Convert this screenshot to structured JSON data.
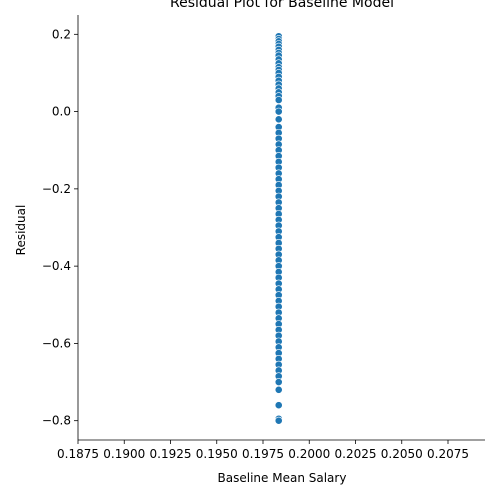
{
  "chart_data": {
    "type": "scatter",
    "title": "Residual Plot for Baseline Model",
    "xlabel": "Baseline Mean Salary",
    "ylabel": "Residual",
    "xlim": [
      0.1875,
      0.2095
    ],
    "ylim": [
      -0.85,
      0.25
    ],
    "xticks": [
      "0.1875",
      "0.1900",
      "0.1925",
      "0.1950",
      "0.1975",
      "0.2000",
      "0.2025",
      "0.2050",
      "0.2075"
    ],
    "yticks": [
      "0.2",
      "0.0",
      "−0.2",
      "−0.4",
      "−0.6",
      "−0.8"
    ],
    "grid": false,
    "marker_color": "#1f77b4",
    "marker_edge_color": "#ffffff",
    "series": [
      {
        "x": 0.19835,
        "y": [
          0.195,
          0.188,
          0.182,
          0.175,
          0.168,
          0.16,
          0.152,
          0.145,
          0.135,
          0.125,
          0.115,
          0.108,
          0.1,
          0.09,
          0.08,
          0.07,
          0.06,
          0.05,
          0.04,
          0.03,
          0.01,
          0.0,
          -0.02,
          -0.04,
          -0.055,
          -0.07,
          -0.085,
          -0.1,
          -0.115,
          -0.13,
          -0.145,
          -0.16,
          -0.175,
          -0.19,
          -0.205,
          -0.22,
          -0.235,
          -0.25,
          -0.265,
          -0.28,
          -0.295,
          -0.31,
          -0.325,
          -0.34,
          -0.355,
          -0.37,
          -0.385,
          -0.4,
          -0.415,
          -0.43,
          -0.445,
          -0.46,
          -0.475,
          -0.49,
          -0.505,
          -0.52,
          -0.535,
          -0.55,
          -0.565,
          -0.58,
          -0.595,
          -0.61,
          -0.625,
          -0.64,
          -0.655,
          -0.67,
          -0.685,
          -0.7,
          -0.72,
          -0.76,
          -0.795,
          -0.8
        ]
      }
    ]
  }
}
